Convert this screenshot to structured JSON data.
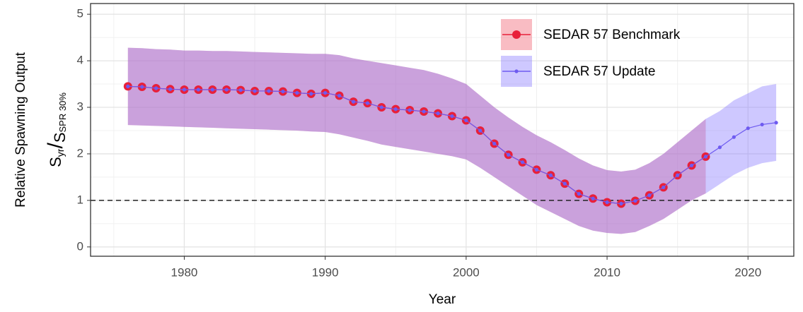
{
  "chart_data": {
    "type": "line",
    "xlabel": "Year",
    "ylabel": "Relative Spawning Output",
    "ylabel2": {
      "numerator": "S",
      "numerator_sub": "yr",
      "separator": "/",
      "denominator": "S",
      "denominator_sub": "SPR 30%"
    },
    "xlim": [
      1973.35,
      2023.25
    ],
    "ylim": [
      -0.2,
      5.23
    ],
    "xticks": [
      1980,
      1990,
      2000,
      2010,
      2020
    ],
    "yticks": [
      0,
      1,
      2,
      3,
      4,
      5
    ],
    "x_minor_grid": [
      1975,
      1985,
      1995,
      2005,
      2015
    ],
    "y_minor_grid": [
      0.5,
      1.5,
      2.5,
      3.5,
      4.5
    ],
    "grid": true,
    "hline": 1,
    "legend": "top-right",
    "series": [
      {
        "name": "SEDAR 57 Benchmark",
        "color": "#e8203a",
        "band_color": "#f06070",
        "marker_size": 6,
        "x": [
          1976,
          1977,
          1978,
          1979,
          1980,
          1981,
          1982,
          1983,
          1984,
          1985,
          1986,
          1987,
          1988,
          1989,
          1990,
          1991,
          1992,
          1993,
          1994,
          1995,
          1996,
          1997,
          1998,
          1999,
          2000,
          2001,
          2002,
          2003,
          2004,
          2005,
          2006,
          2007,
          2008,
          2009,
          2010,
          2011,
          2012,
          2013,
          2014,
          2015,
          2016,
          2017
        ],
        "values": [
          3.45,
          3.44,
          3.41,
          3.39,
          3.38,
          3.38,
          3.38,
          3.38,
          3.37,
          3.35,
          3.35,
          3.34,
          3.31,
          3.29,
          3.31,
          3.25,
          3.12,
          3.09,
          3.0,
          2.96,
          2.94,
          2.91,
          2.87,
          2.81,
          2.72,
          2.5,
          2.22,
          1.98,
          1.82,
          1.66,
          1.54,
          1.36,
          1.14,
          1.04,
          0.96,
          0.93,
          0.99,
          1.11,
          1.28,
          1.54,
          1.75,
          1.94
        ],
        "upper": [
          4.28,
          4.27,
          4.25,
          4.24,
          4.22,
          4.22,
          4.21,
          4.21,
          4.2,
          4.19,
          4.18,
          4.17,
          4.16,
          4.15,
          4.15,
          4.12,
          4.05,
          4.0,
          3.95,
          3.9,
          3.85,
          3.8,
          3.72,
          3.62,
          3.5,
          3.25,
          3.0,
          2.78,
          2.58,
          2.4,
          2.25,
          2.08,
          1.9,
          1.75,
          1.65,
          1.62,
          1.66,
          1.8,
          2.0,
          2.25,
          2.5,
          2.75
        ],
        "lower": [
          2.62,
          2.61,
          2.6,
          2.59,
          2.58,
          2.57,
          2.56,
          2.55,
          2.54,
          2.53,
          2.52,
          2.51,
          2.5,
          2.48,
          2.47,
          2.42,
          2.35,
          2.28,
          2.2,
          2.15,
          2.1,
          2.05,
          2.0,
          1.95,
          1.88,
          1.7,
          1.5,
          1.3,
          1.1,
          0.9,
          0.75,
          0.6,
          0.45,
          0.35,
          0.3,
          0.28,
          0.32,
          0.45,
          0.6,
          0.8,
          1.0,
          1.15
        ]
      },
      {
        "name": "SEDAR 57 Update",
        "color": "#6e5bf0",
        "band_color": "#8a7cff",
        "marker_size": 2.6,
        "x": [
          1976,
          1977,
          1978,
          1979,
          1980,
          1981,
          1982,
          1983,
          1984,
          1985,
          1986,
          1987,
          1988,
          1989,
          1990,
          1991,
          1992,
          1993,
          1994,
          1995,
          1996,
          1997,
          1998,
          1999,
          2000,
          2001,
          2002,
          2003,
          2004,
          2005,
          2006,
          2007,
          2008,
          2009,
          2010,
          2011,
          2012,
          2013,
          2014,
          2015,
          2016,
          2017,
          2018,
          2019,
          2020,
          2021,
          2022
        ],
        "values": [
          3.45,
          3.44,
          3.41,
          3.39,
          3.38,
          3.38,
          3.38,
          3.38,
          3.37,
          3.35,
          3.35,
          3.34,
          3.31,
          3.29,
          3.31,
          3.25,
          3.12,
          3.09,
          3.0,
          2.96,
          2.94,
          2.91,
          2.87,
          2.81,
          2.72,
          2.5,
          2.22,
          1.98,
          1.82,
          1.66,
          1.54,
          1.36,
          1.14,
          1.04,
          0.96,
          0.93,
          0.99,
          1.11,
          1.28,
          1.54,
          1.75,
          1.94,
          2.14,
          2.36,
          2.55,
          2.63,
          2.67
        ],
        "upper": [
          4.28,
          4.27,
          4.25,
          4.24,
          4.22,
          4.22,
          4.21,
          4.21,
          4.2,
          4.19,
          4.18,
          4.17,
          4.16,
          4.15,
          4.15,
          4.12,
          4.05,
          4.0,
          3.95,
          3.9,
          3.85,
          3.8,
          3.72,
          3.62,
          3.5,
          3.25,
          3.0,
          2.78,
          2.58,
          2.4,
          2.25,
          2.08,
          1.9,
          1.75,
          1.65,
          1.62,
          1.66,
          1.8,
          2.0,
          2.25,
          2.5,
          2.75,
          2.92,
          3.15,
          3.3,
          3.45,
          3.5
        ],
        "lower": [
          2.62,
          2.61,
          2.6,
          2.59,
          2.58,
          2.57,
          2.56,
          2.55,
          2.54,
          2.53,
          2.52,
          2.51,
          2.5,
          2.48,
          2.47,
          2.42,
          2.35,
          2.28,
          2.2,
          2.15,
          2.1,
          2.05,
          2.0,
          1.95,
          1.88,
          1.7,
          1.5,
          1.3,
          1.1,
          0.9,
          0.75,
          0.6,
          0.45,
          0.35,
          0.3,
          0.28,
          0.32,
          0.45,
          0.6,
          0.8,
          1.0,
          1.15,
          1.35,
          1.55,
          1.7,
          1.8,
          1.85
        ]
      }
    ]
  }
}
